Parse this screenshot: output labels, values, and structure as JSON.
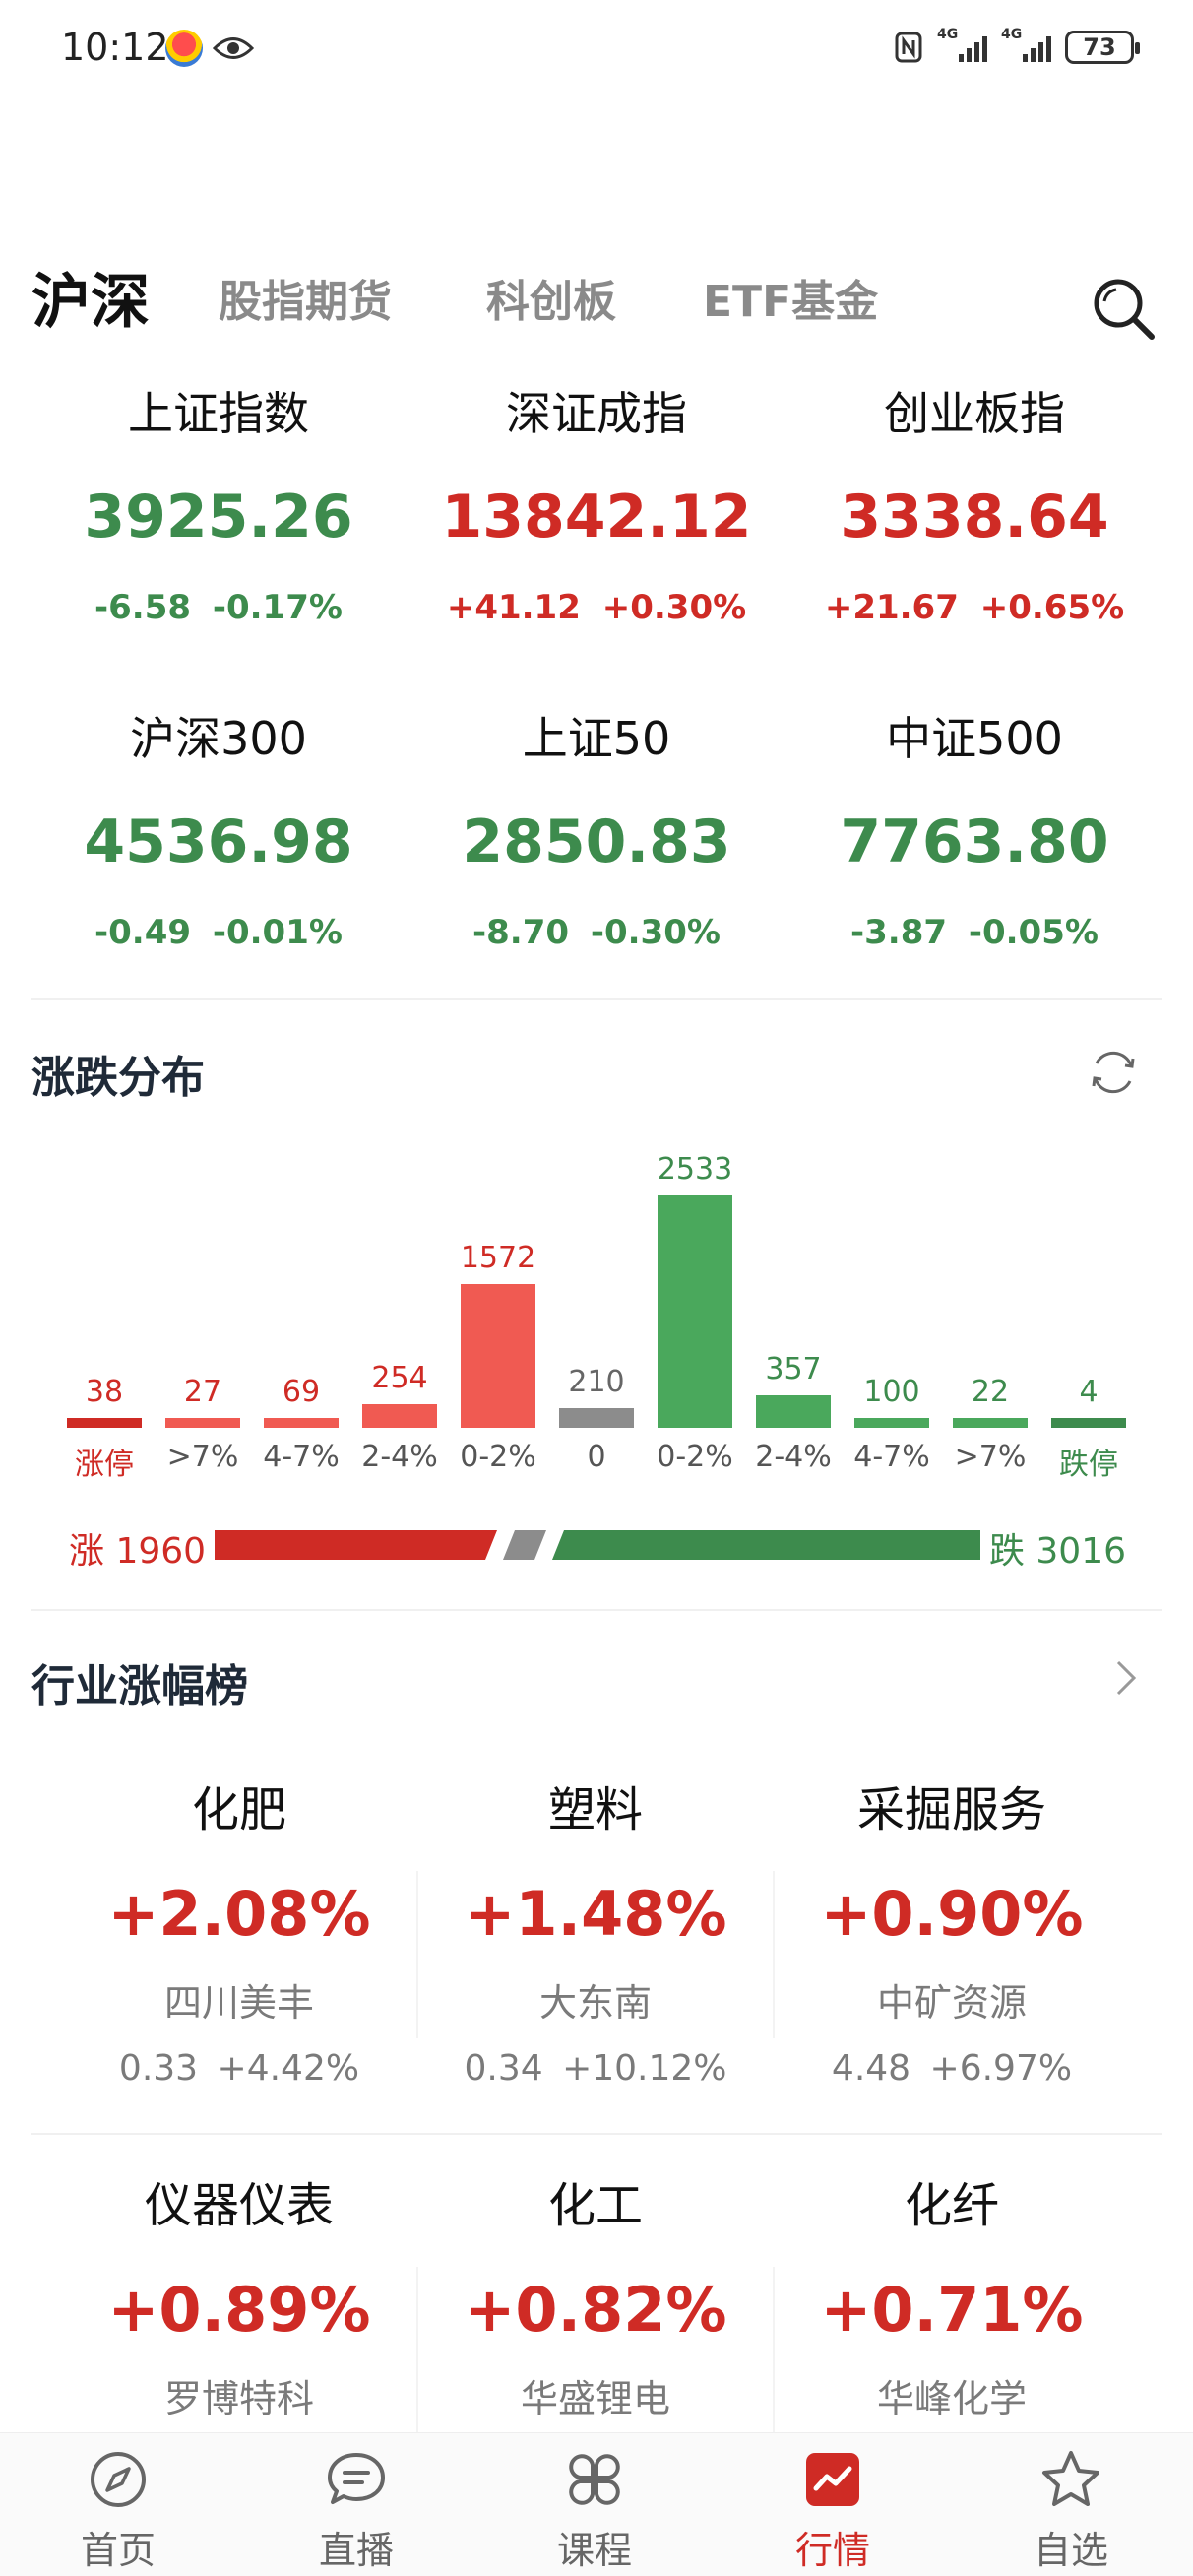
{
  "status_bar": {
    "time": "10:12",
    "battery": "73",
    "net1": "4G",
    "net2": "4G"
  },
  "tabs": [
    {
      "label": "沪深",
      "active": true
    },
    {
      "label": "股指期货",
      "active": false
    },
    {
      "label": "科创板",
      "active": false
    },
    {
      "label": "ETF基金",
      "active": false
    }
  ],
  "indices": [
    {
      "name": "上证指数",
      "value": "3925.26",
      "change": "-6.58",
      "pct": "-0.17%",
      "trend": "down"
    },
    {
      "name": "深证成指",
      "value": "13842.12",
      "change": "+41.12",
      "pct": "+0.30%",
      "trend": "up"
    },
    {
      "name": "创业板指",
      "value": "3338.64",
      "change": "+21.67",
      "pct": "+0.65%",
      "trend": "up"
    },
    {
      "name": "沪深300",
      "value": "4536.98",
      "change": "-0.49",
      "pct": "-0.01%",
      "trend": "down"
    },
    {
      "name": "上证50",
      "value": "2850.83",
      "change": "-8.70",
      "pct": "-0.30%",
      "trend": "down"
    },
    {
      "name": "中证500",
      "value": "7763.80",
      "change": "-3.87",
      "pct": "-0.05%",
      "trend": "down"
    }
  ],
  "distribution": {
    "title": "涨跌分布",
    "buckets": [
      {
        "label": "涨停",
        "count": 38,
        "kind": "up-dark"
      },
      {
        "label": ">7%",
        "count": 27,
        "kind": "up"
      },
      {
        "label": "4-7%",
        "count": 69,
        "kind": "up"
      },
      {
        "label": "2-4%",
        "count": 254,
        "kind": "up"
      },
      {
        "label": "0-2%",
        "count": 1572,
        "kind": "up"
      },
      {
        "label": "0",
        "count": 210,
        "kind": "flat"
      },
      {
        "label": "0-2%",
        "count": 2533,
        "kind": "down"
      },
      {
        "label": "2-4%",
        "count": 357,
        "kind": "down"
      },
      {
        "label": "4-7%",
        "count": 100,
        "kind": "down"
      },
      {
        "label": ">7%",
        "count": 22,
        "kind": "down"
      },
      {
        "label": "跌停",
        "count": 4,
        "kind": "down-dark"
      }
    ],
    "up_label": "涨 1960",
    "down_label": "跌 3016",
    "up_total": 1960,
    "down_total": 3016
  },
  "industry": {
    "title": "行业涨幅榜",
    "items": [
      {
        "name": "化肥",
        "pct": "+2.08%",
        "stock": "四川美丰",
        "stock_price": "0.33",
        "stock_pct": "+4.42%"
      },
      {
        "name": "塑料",
        "pct": "+1.48%",
        "stock": "大东南",
        "stock_price": "0.34",
        "stock_pct": "+10.12%"
      },
      {
        "name": "采掘服务",
        "pct": "+0.90%",
        "stock": "中矿资源",
        "stock_price": "4.48",
        "stock_pct": "+6.97%"
      },
      {
        "name": "仪器仪表",
        "pct": "+0.89%",
        "stock": "罗博特科",
        "stock_price": "",
        "stock_pct": ""
      },
      {
        "name": "化工",
        "pct": "+0.82%",
        "stock": "华盛锂电",
        "stock_price": "",
        "stock_pct": ""
      },
      {
        "name": "化纤",
        "pct": "+0.71%",
        "stock": "华峰化学",
        "stock_price": "",
        "stock_pct": ""
      }
    ]
  },
  "bottom_nav": [
    {
      "label": "首页",
      "icon": "compass-icon",
      "active": false
    },
    {
      "label": "直播",
      "icon": "chat-bubble-icon",
      "active": false
    },
    {
      "label": "课程",
      "icon": "grid-petals-icon",
      "active": false
    },
    {
      "label": "行情",
      "icon": "trend-chart-icon",
      "active": true
    },
    {
      "label": "自选",
      "icon": "star-icon",
      "active": false
    }
  ],
  "colors": {
    "up": "#cf2b25",
    "up_light": "#f05a52",
    "down": "#3d8b4d",
    "down_light": "#4aa85c",
    "flat": "#8c8c8c"
  }
}
